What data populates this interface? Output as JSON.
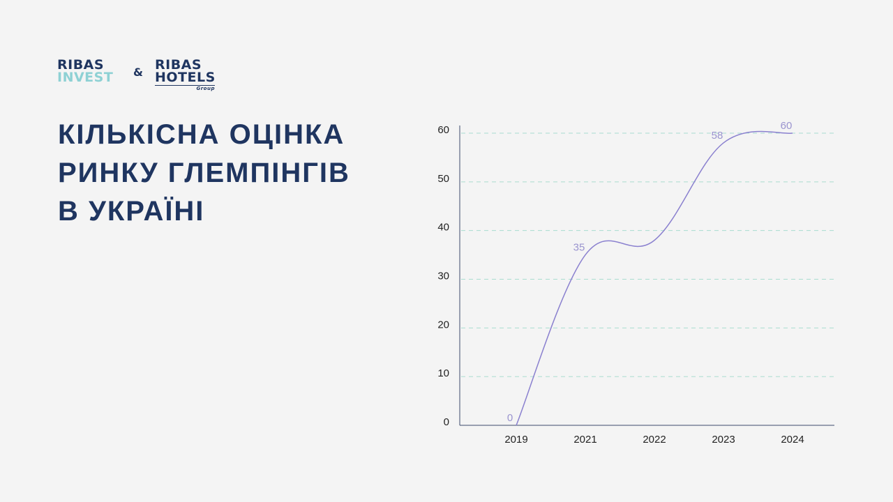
{
  "logo": {
    "left_top": "RIBAS",
    "left_bottom": "INVEST",
    "amp": "&",
    "right_top": "RIBAS",
    "right_bottom": "HOTELS",
    "right_sub": "Group"
  },
  "chart_data": {
    "type": "line",
    "title": [
      "КІЛЬКІСНА ОЦІНКА",
      "РИНКУ ГЛЕМПІНГІВ",
      "В УКРАЇНІ"
    ],
    "categories": [
      "2019",
      "2021",
      "2022",
      "2023",
      "2024"
    ],
    "values": [
      0,
      35,
      38,
      58,
      60
    ],
    "value_labels": [
      "0",
      "35",
      null,
      "58",
      "60"
    ],
    "color": "#8a80cf",
    "ylim": [
      0,
      60
    ],
    "yticks": [
      0,
      10,
      20,
      30,
      40,
      50,
      60
    ],
    "grid": true
  }
}
